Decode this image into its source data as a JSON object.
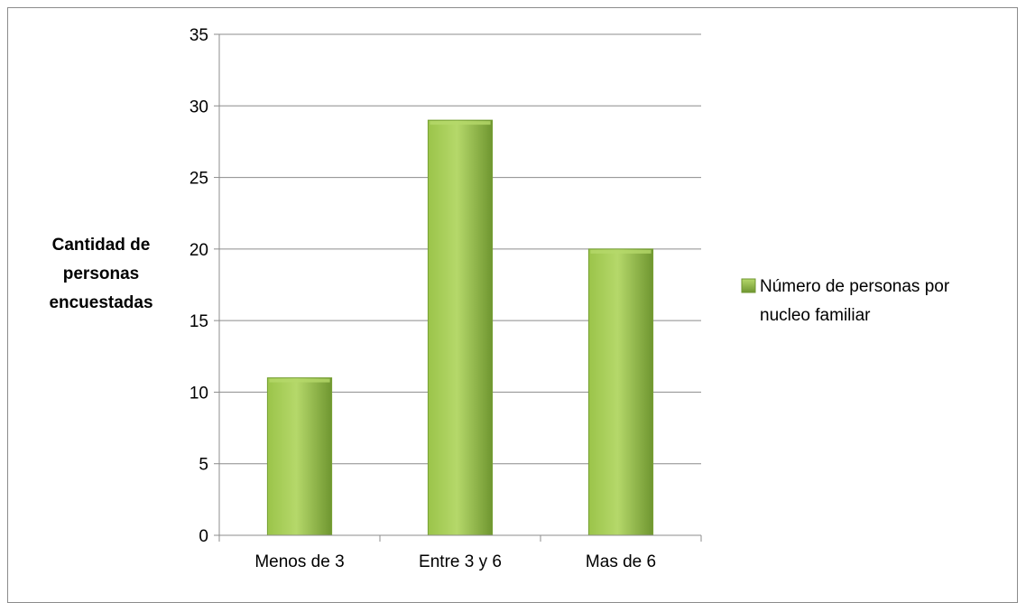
{
  "chart_data": {
    "type": "bar",
    "categories": [
      "Menos de 3",
      "Entre 3 y 6",
      "Mas de 6"
    ],
    "series": [
      {
        "name": "Número de personas por nucleo familiar",
        "values": [
          11,
          29,
          20
        ]
      }
    ],
    "title": "",
    "xlabel": "",
    "ylabel": "Cantidad de personas encuestadas",
    "ylabel_lines": [
      "Cantidad de",
      "personas",
      "encuestadas"
    ],
    "ylim": [
      0,
      35
    ],
    "yticks": [
      0,
      5,
      10,
      15,
      20,
      25,
      30,
      35
    ],
    "grid": true,
    "legend_position": "right",
    "legend_lines": [
      "Número de personas por",
      "nucleo familiar"
    ],
    "colors": {
      "bar_light": "#b5d86a",
      "bar_mid": "#9bc44a",
      "bar_dark": "#6f9630",
      "bar_edge": "#77a035",
      "grid": "#8c8c8c",
      "axis": "#8c8c8c"
    }
  }
}
